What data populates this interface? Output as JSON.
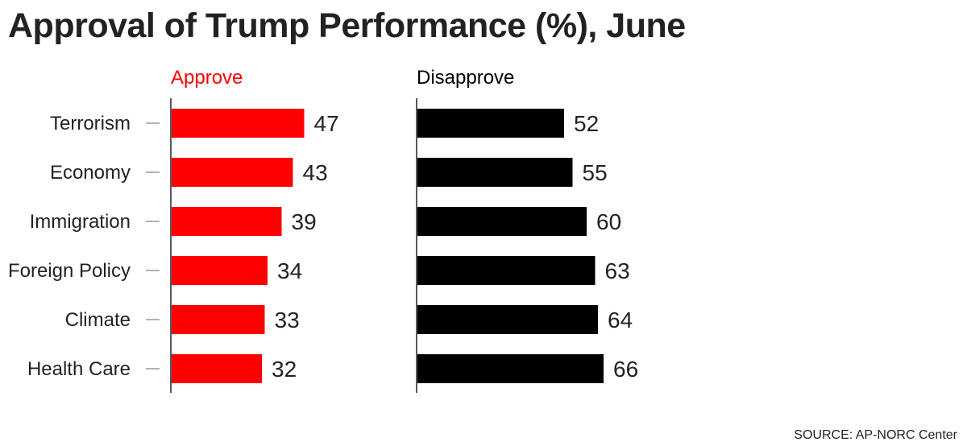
{
  "chart_data": {
    "type": "bar",
    "orientation": "horizontal",
    "title": "Approval of Trump Performance (%), June",
    "categories": [
      "Terrorism",
      "Economy",
      "Immigration",
      "Foreign Policy",
      "Climate",
      "Health Care"
    ],
    "series": [
      {
        "name": "Approve",
        "values": [
          47,
          43,
          39,
          34,
          33,
          32
        ],
        "color": "#ff0000"
      },
      {
        "name": "Disapprove",
        "values": [
          52,
          55,
          60,
          63,
          64,
          66
        ],
        "color": "#000000"
      }
    ],
    "source": "SOURCE: AP-NORC Center"
  }
}
